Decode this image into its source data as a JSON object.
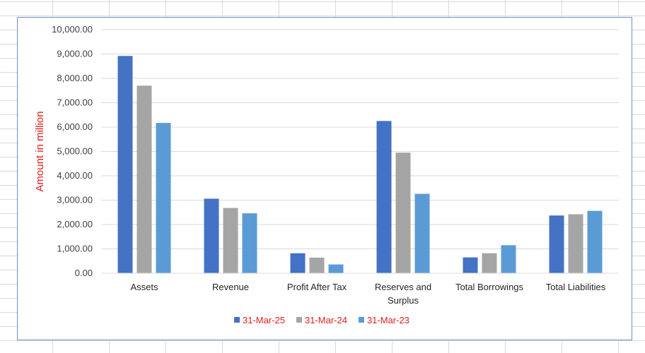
{
  "chart_data": {
    "type": "bar",
    "title": "",
    "xlabel": "",
    "ylabel": "Amount in million",
    "ylim": [
      0,
      10000
    ],
    "y_ticks": [
      "0.00",
      "1,000.00",
      "2,000.00",
      "3,000.00",
      "4,000.00",
      "5,000.00",
      "6,000.00",
      "7,000.00",
      "8,000.00",
      "9,000.00",
      "10,000.00"
    ],
    "categories": [
      [
        "Assets"
      ],
      [
        "Revenue"
      ],
      [
        "Profit After Tax"
      ],
      [
        "Reserves and",
        "Surplus"
      ],
      [
        "Total Borrowings"
      ],
      [
        "Total Liabilities"
      ]
    ],
    "series": [
      {
        "name": "31-Mar-25",
        "color": "#4472c4",
        "values": [
          8920,
          3060,
          820,
          6250,
          650,
          2370
        ]
      },
      {
        "name": "31-Mar-24",
        "color": "#a5a5a5",
        "values": [
          7700,
          2680,
          640,
          4950,
          820,
          2420
        ]
      },
      {
        "name": "31-Mar-23",
        "color": "#5b9bd5",
        "values": [
          6170,
          2460,
          360,
          3260,
          1150,
          2560
        ]
      }
    ],
    "grid": true,
    "legend_position": "bottom"
  }
}
